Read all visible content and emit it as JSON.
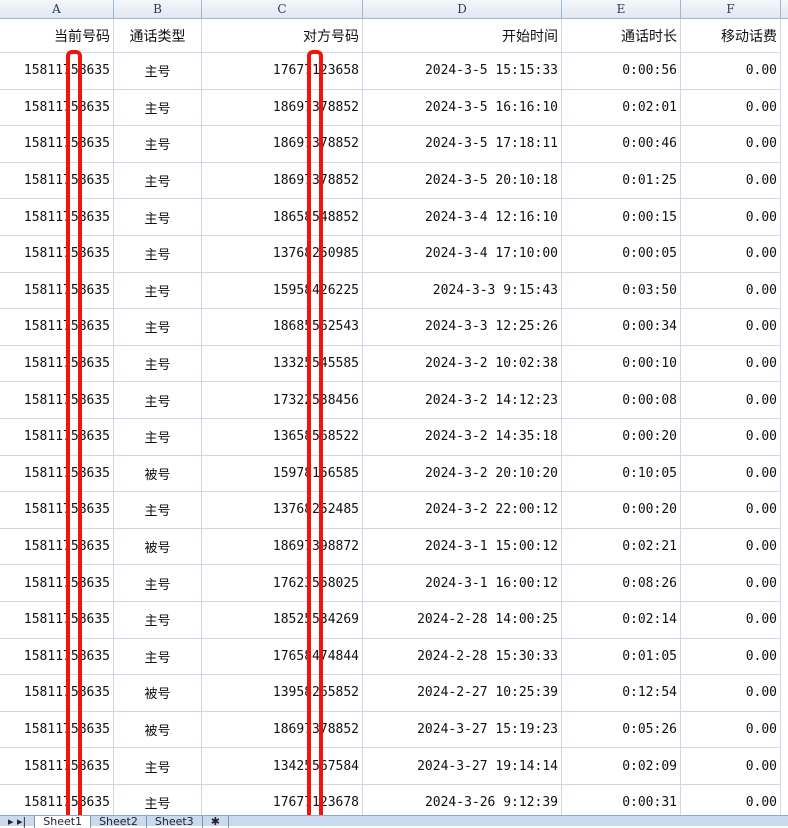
{
  "columns": [
    "A",
    "B",
    "C",
    "D",
    "E",
    "F"
  ],
  "headers": [
    "当前号码",
    "通话类型",
    "对方号码",
    "开始时间",
    "通话时长",
    "移动话费"
  ],
  "rows": [
    [
      "15811758635",
      "主号",
      "17677123658",
      "2024-3-5 15:15:33",
      "0:00:56",
      "0.00"
    ],
    [
      "15811758635",
      "主号",
      "18697378852",
      "2024-3-5 16:16:10",
      "0:02:01",
      "0.00"
    ],
    [
      "15811758635",
      "主号",
      "18697378852",
      "2024-3-5 17:18:11",
      "0:00:46",
      "0.00"
    ],
    [
      "15811758635",
      "主号",
      "18697378852",
      "2024-3-5 20:10:18",
      "0:01:25",
      "0.00"
    ],
    [
      "15811758635",
      "主号",
      "18658548852",
      "2024-3-4 12:16:10",
      "0:00:15",
      "0.00"
    ],
    [
      "15811758635",
      "主号",
      "13768250985",
      "2024-3-4 17:10:00",
      "0:00:05",
      "0.00"
    ],
    [
      "15811758635",
      "主号",
      "15958426225",
      "2024-3-3 9:15:43",
      "0:03:50",
      "0.00"
    ],
    [
      "15811758635",
      "主号",
      "18685562543",
      "2024-3-3 12:25:26",
      "0:00:34",
      "0.00"
    ],
    [
      "15811758635",
      "主号",
      "13325545585",
      "2024-3-2 10:02:38",
      "0:00:10",
      "0.00"
    ],
    [
      "15811758635",
      "主号",
      "17322538456",
      "2024-3-2 14:12:23",
      "0:00:08",
      "0.00"
    ],
    [
      "15811758635",
      "主号",
      "13658568522",
      "2024-3-2 14:35:18",
      "0:00:20",
      "0.00"
    ],
    [
      "15811758635",
      "被号",
      "15978156585",
      "2024-3-2 20:10:20",
      "0:10:05",
      "0.00"
    ],
    [
      "15811758635",
      "主号",
      "13768252485",
      "2024-3-2 22:00:12",
      "0:00:20",
      "0.00"
    ],
    [
      "15811758635",
      "被号",
      "18697398872",
      "2024-3-1 15:00:12",
      "0:02:21",
      "0.00"
    ],
    [
      "15811758635",
      "主号",
      "17623558025",
      "2024-3-1 16:00:12",
      "0:08:26",
      "0.00"
    ],
    [
      "15811758635",
      "主号",
      "18525534269",
      "2024-2-28 14:00:25",
      "0:02:14",
      "0.00"
    ],
    [
      "15811758635",
      "主号",
      "17658474844",
      "2024-2-28 15:30:33",
      "0:01:05",
      "0.00"
    ],
    [
      "15811758635",
      "被号",
      "13958265852",
      "2024-2-27 10:25:39",
      "0:12:54",
      "0.00"
    ],
    [
      "15811758635",
      "被号",
      "18697378852",
      "2024-3-27 15:19:23",
      "0:05:26",
      "0.00"
    ],
    [
      "15811758635",
      "主号",
      "13425567584",
      "2024-3-27 19:14:14",
      "0:02:09",
      "0.00"
    ],
    [
      "15811758635",
      "主号",
      "17677123678",
      "2024-3-26 9:12:39",
      "0:00:31",
      "0.00"
    ]
  ],
  "sheets": [
    "Sheet1",
    "Sheet2",
    "Sheet3"
  ],
  "active_sheet": "Sheet1",
  "redaction_color": "#f0140c"
}
